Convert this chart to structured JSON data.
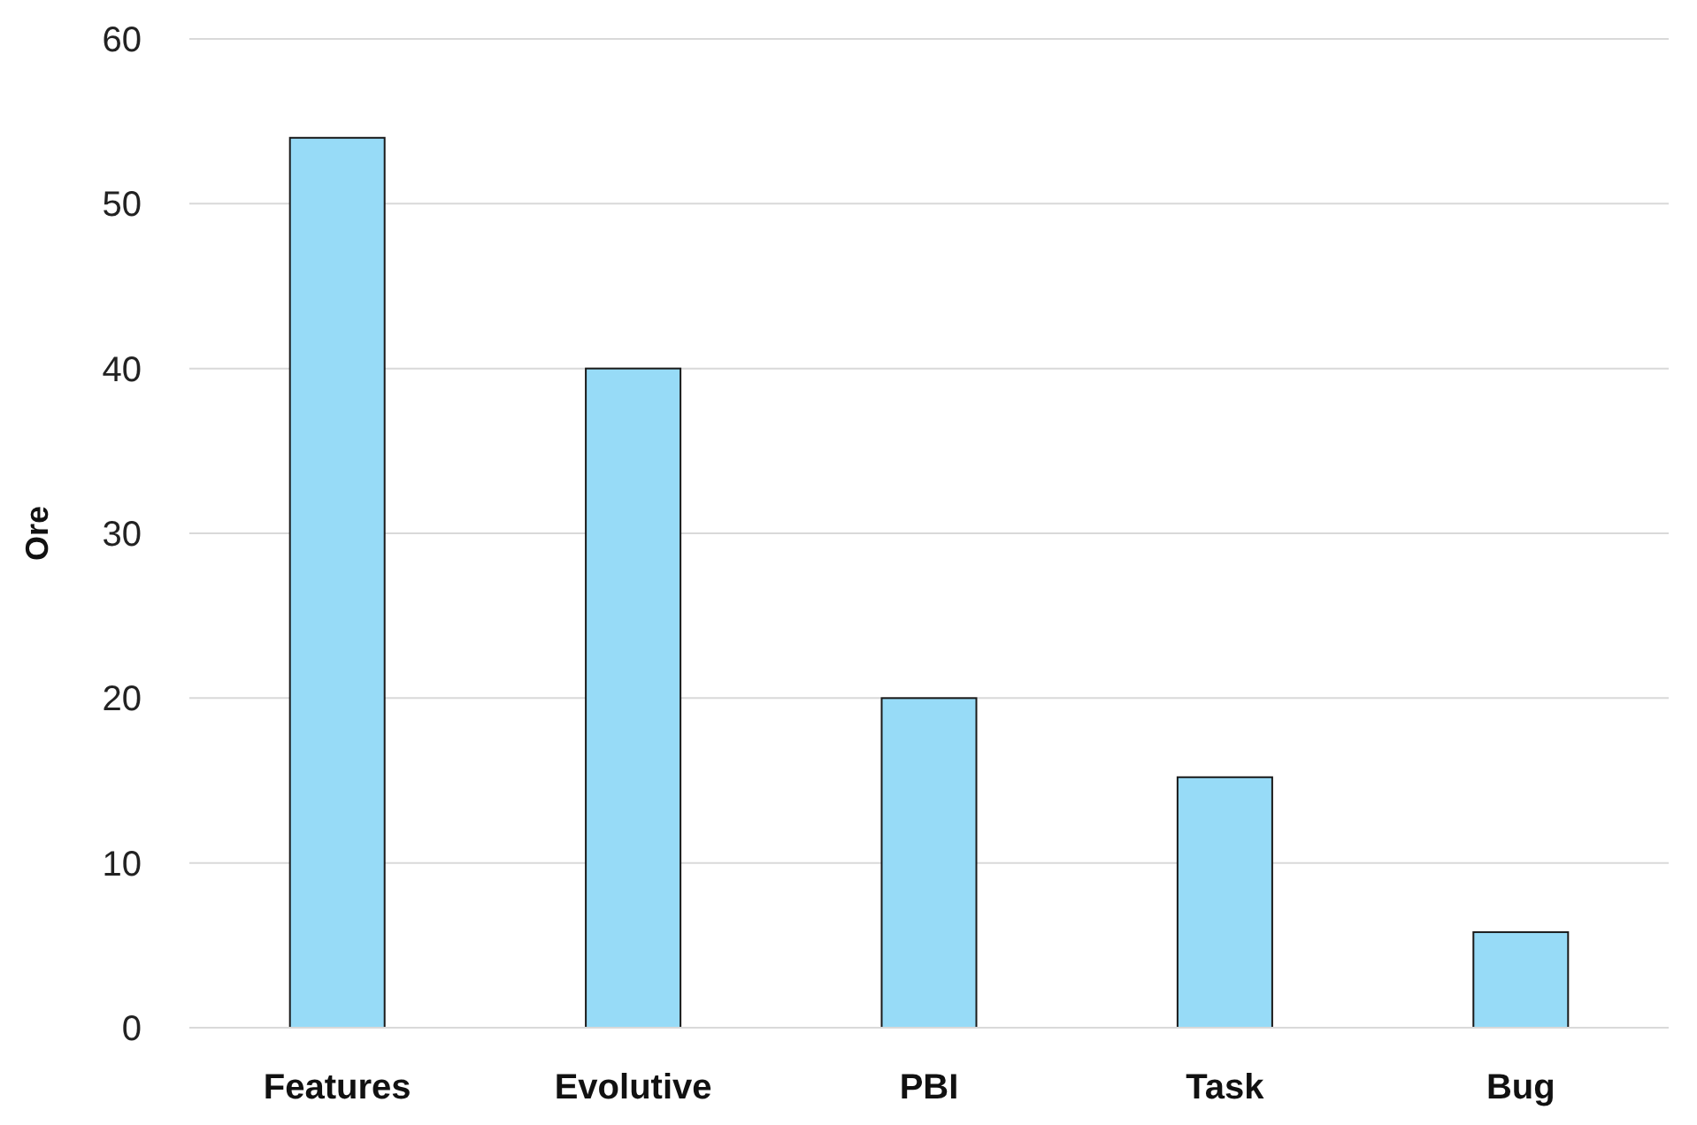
{
  "chart_data": {
    "type": "bar",
    "ylabel": "Ore",
    "categories": [
      "Features",
      "Evolutive",
      "PBI",
      "Task",
      "Bug"
    ],
    "values": [
      54,
      40,
      20,
      15.2,
      5.8
    ],
    "color": "#97dbf7",
    "ylim": [
      0,
      60
    ],
    "yticks": [
      0,
      10,
      20,
      30,
      40,
      50,
      60
    ],
    "grid": "y"
  }
}
